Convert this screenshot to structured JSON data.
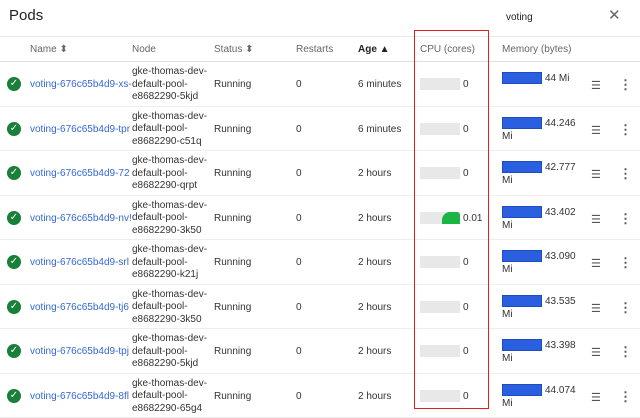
{
  "title": "Pods",
  "search": {
    "value": "voting"
  },
  "close_icon": "close-icon",
  "columns": {
    "name": "Name ⬍",
    "node": "Node",
    "status": "Status ⬍",
    "restarts": "Restarts",
    "age": "Age ▲",
    "cpu": "CPU (cores)",
    "memory": "Memory (bytes)"
  },
  "highlight_color": "#e02020",
  "rows": [
    {
      "name": "voting-676c65b4d9-xs-",
      "node": "gke-thomas-dev-default-pool-e8682290-5kjd",
      "status": "Running",
      "restarts": "0",
      "age": "6 minutes",
      "cpu": "0",
      "cpu_fill": 0,
      "mem": "44 Mi",
      "mem2": ""
    },
    {
      "name": "voting-676c65b4d9-tpr",
      "node": "gke-thomas-dev-default-pool-e8682290-c51q",
      "status": "Running",
      "restarts": "0",
      "age": "6 minutes",
      "cpu": "0",
      "cpu_fill": 0,
      "mem": "44.246",
      "mem2": "Mi"
    },
    {
      "name": "voting-676c65b4d9-72",
      "node": "gke-thomas-dev-default-pool-e8682290-qrpt",
      "status": "Running",
      "restarts": "0",
      "age": "2 hours",
      "cpu": "0",
      "cpu_fill": 0,
      "mem": "42.777",
      "mem2": "Mi"
    },
    {
      "name": "voting-676c65b4d9-nv!",
      "node": "gke-thomas-dev-default-pool-e8682290-3k50",
      "status": "Running",
      "restarts": "0",
      "age": "2 hours",
      "cpu": "0.01",
      "cpu_fill": 0.45,
      "mem": "43.402",
      "mem2": "Mi"
    },
    {
      "name": "voting-676c65b4d9-srl",
      "node": "gke-thomas-dev-default-pool-e8682290-k21j",
      "status": "Running",
      "restarts": "0",
      "age": "2 hours",
      "cpu": "0",
      "cpu_fill": 0,
      "mem": "43.090",
      "mem2": "Mi"
    },
    {
      "name": "voting-676c65b4d9-tj6",
      "node": "gke-thomas-dev-default-pool-e8682290-3k50",
      "status": "Running",
      "restarts": "0",
      "age": "2 hours",
      "cpu": "0",
      "cpu_fill": 0,
      "mem": "43.535",
      "mem2": "Mi"
    },
    {
      "name": "voting-676c65b4d9-tpj",
      "node": "gke-thomas-dev-default-pool-e8682290-5kjd",
      "status": "Running",
      "restarts": "0",
      "age": "2 hours",
      "cpu": "0",
      "cpu_fill": 0,
      "mem": "43.398",
      "mem2": "Mi"
    },
    {
      "name": "voting-676c65b4d9-8fl",
      "node": "gke-thomas-dev-default-pool-e8682290-65g4",
      "status": "Running",
      "restarts": "0",
      "age": "2 hours",
      "cpu": "0",
      "cpu_fill": 0,
      "mem": "44.074",
      "mem2": "Mi"
    }
  ]
}
